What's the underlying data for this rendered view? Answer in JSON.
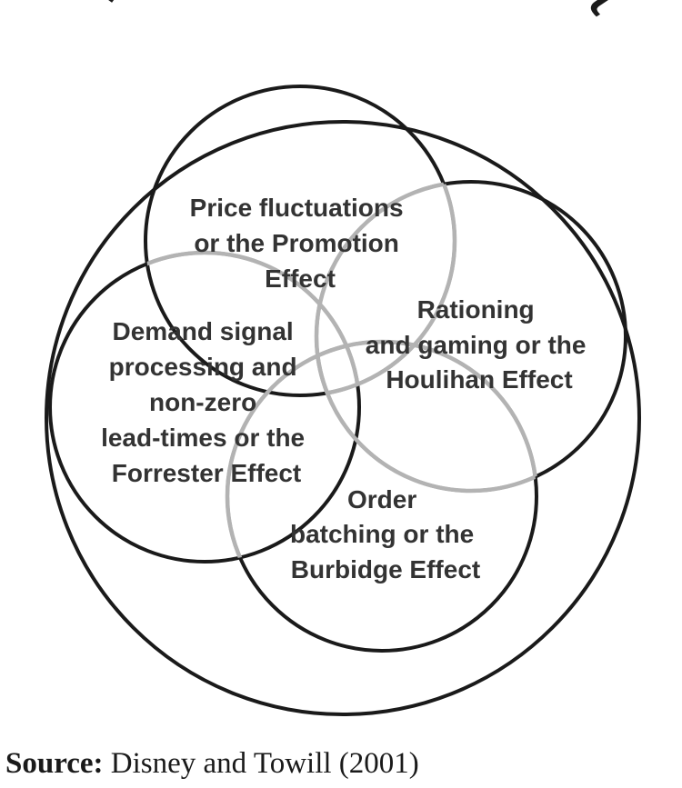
{
  "title": "The Bullwhip Effect",
  "circles": [
    {
      "id": "price",
      "stroke": "#1a1a1a",
      "lines": [
        "Price fluctuations",
        "or the Promotion",
        "Effect"
      ]
    },
    {
      "id": "rationing",
      "stroke": "#1a1a1a",
      "lines": [
        "Rationing",
        "and gaming or the",
        "Houlihan Effect"
      ]
    },
    {
      "id": "demand",
      "stroke": "#1a1a1a",
      "lines": [
        "Demand signal",
        "processing and",
        "non-zero",
        "lead-times or the",
        "Forrester Effect"
      ]
    },
    {
      "id": "order",
      "stroke": "#1a1a1a",
      "lines": [
        "Order",
        "batching or the",
        "Burbidge Effect"
      ]
    }
  ],
  "overlap_color": "#b3b3b3",
  "source": {
    "prefix": "Source:",
    "text": " Disney and Towill (2001)"
  }
}
